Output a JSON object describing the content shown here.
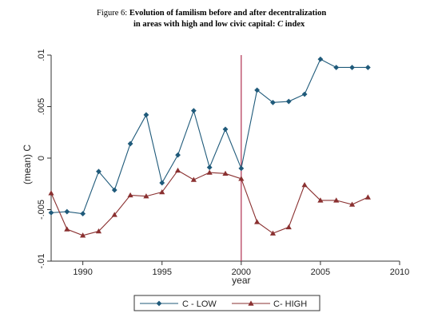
{
  "caption": {
    "prefix": "Figure 6: ",
    "line1_bold": "Evolution of familism before and after decentralization",
    "line2_bold": "in areas with high and low civic capital: ",
    "line2_italic": "C",
    "line2_tail": " index"
  },
  "chart_data": {
    "type": "line",
    "title": "",
    "xlabel": "year",
    "ylabel": "(mean) C",
    "xlim": [
      1988,
      2010
    ],
    "ylim": [
      -0.01,
      0.01
    ],
    "x_ticks": [
      1990,
      1995,
      2000,
      2005,
      2010
    ],
    "x_tick_labels": [
      "1990",
      "1995",
      "2000",
      "2005",
      "2010"
    ],
    "y_ticks": [
      -0.01,
      -0.005,
      0,
      0.005,
      0.01
    ],
    "y_tick_labels": [
      "-.01",
      "-.005",
      "0",
      ".005",
      ".01"
    ],
    "reference_line": {
      "x": 2000,
      "color": "#b03050"
    },
    "grid": false,
    "legend_position": "bottom",
    "x": [
      1988,
      1989,
      1990,
      1991,
      1992,
      1993,
      1994,
      1995,
      1996,
      1997,
      1998,
      1999,
      2000,
      2001,
      2002,
      2003,
      2004,
      2005,
      2006,
      2007,
      2008
    ],
    "series": [
      {
        "name": "C - LOW",
        "color": "#1f5a7a",
        "marker": "diamond",
        "values": [
          -0.0053,
          -0.0052,
          -0.0054,
          -0.0013,
          -0.0031,
          0.0014,
          0.0042,
          -0.0024,
          0.0003,
          0.0046,
          -0.0009,
          0.0028,
          -0.001,
          0.0066,
          0.0054,
          0.0055,
          0.0062,
          0.0096,
          0.0088,
          0.0088,
          0.0088
        ]
      },
      {
        "name": "C- HIGH",
        "color": "#8a3030",
        "marker": "triangle",
        "values": [
          -0.0034,
          -0.0069,
          -0.0075,
          -0.0071,
          -0.0055,
          -0.0036,
          -0.0037,
          -0.0033,
          -0.0012,
          -0.0021,
          -0.0014,
          -0.0015,
          -0.002,
          -0.0062,
          -0.0073,
          -0.0067,
          -0.0026,
          -0.0041,
          -0.0041,
          -0.0045,
          -0.0038
        ]
      }
    ]
  }
}
